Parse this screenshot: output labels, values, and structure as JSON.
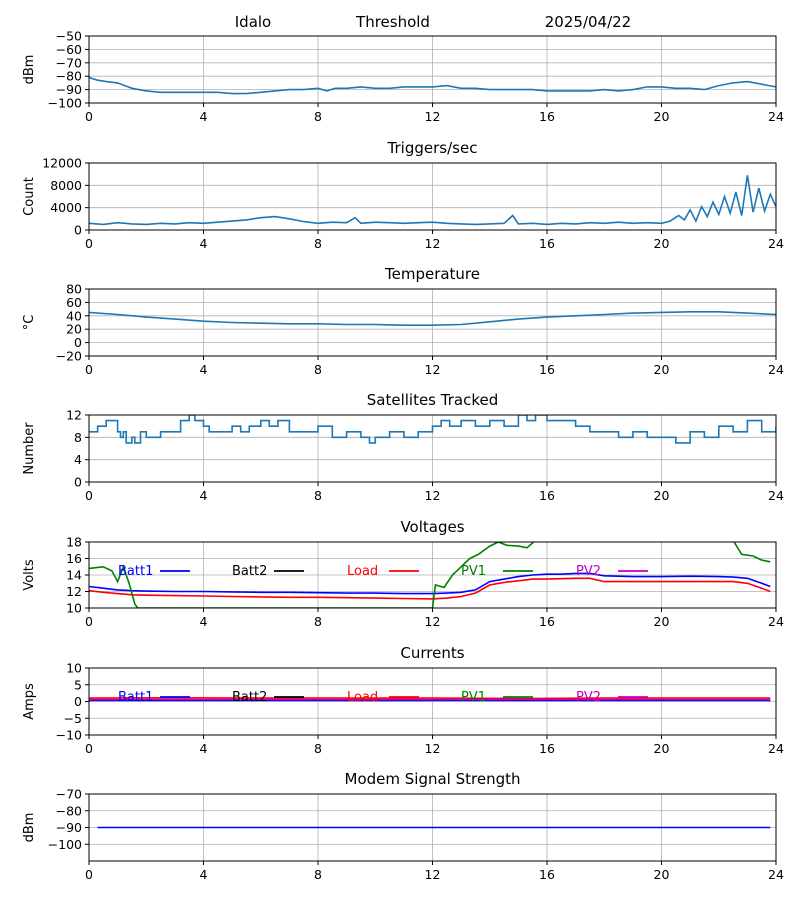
{
  "header": {
    "site": "Idalo",
    "label": "Threshold",
    "date": "2025/04/22"
  },
  "chart_data": [
    {
      "id": "threshold",
      "type": "line",
      "title": "",
      "ylabel": "dBm",
      "xlim": [
        0,
        24
      ],
      "ylim": [
        -100,
        -50
      ],
      "yticks": [
        -50,
        -60,
        -70,
        -80,
        -90,
        -100
      ],
      "xticks": [
        0,
        4,
        8,
        12,
        16,
        20,
        24
      ],
      "grid": true,
      "series": [
        {
          "color": "#1f77b4",
          "x": [
            0,
            0.3,
            0.6,
            1,
            1.5,
            2,
            2.5,
            3,
            3.5,
            4,
            4.5,
            5,
            5.5,
            6,
            6.5,
            7,
            7.5,
            8,
            8.3,
            8.6,
            9,
            9.5,
            10,
            10.5,
            11,
            11.5,
            12,
            12.5,
            13,
            13.5,
            14,
            14.5,
            15,
            15.5,
            16,
            16.5,
            17,
            17.5,
            18,
            18.5,
            19,
            19.5,
            20,
            20.5,
            21,
            21.5,
            22,
            22.5,
            23,
            23.5,
            24
          ],
          "y": [
            -81,
            -83,
            -84,
            -85,
            -89,
            -91,
            -92,
            -92,
            -92,
            -92,
            -92,
            -93,
            -93,
            -92,
            -91,
            -90,
            -90,
            -89,
            -91,
            -89,
            -89,
            -88,
            -89,
            -89,
            -88,
            -88,
            -88,
            -87,
            -89,
            -89,
            -90,
            -90,
            -90,
            -90,
            -91,
            -91,
            -91,
            -91,
            -90,
            -91,
            -90,
            -88,
            -88,
            -89,
            -89,
            -90,
            -87,
            -85,
            -84,
            -86,
            -88
          ]
        }
      ]
    },
    {
      "id": "triggers",
      "type": "line",
      "title": "Triggers/sec",
      "ylabel": "Count",
      "xlim": [
        0,
        24
      ],
      "ylim": [
        0,
        12000
      ],
      "yticks": [
        0,
        4000,
        8000,
        12000
      ],
      "xticks": [
        0,
        4,
        8,
        12,
        16,
        20,
        24
      ],
      "grid": true,
      "series": [
        {
          "color": "#1f77b4",
          "x": [
            0,
            0.5,
            1,
            1.5,
            2,
            2.5,
            3,
            3.5,
            4,
            4.5,
            5,
            5.5,
            6,
            6.5,
            7,
            7.5,
            8,
            8.5,
            9,
            9.3,
            9.5,
            10,
            10.5,
            11,
            11.5,
            12,
            12.5,
            13,
            13.5,
            14,
            14.5,
            14.8,
            15,
            15.5,
            16,
            16.5,
            17,
            17.5,
            18,
            18.5,
            19,
            19.5,
            20,
            20.3,
            20.6,
            20.8,
            21,
            21.2,
            21.4,
            21.6,
            21.8,
            22,
            22.2,
            22.4,
            22.6,
            22.8,
            23,
            23.2,
            23.4,
            23.6,
            23.8,
            24
          ],
          "y": [
            1200,
            1000,
            1300,
            1100,
            1000,
            1200,
            1100,
            1300,
            1200,
            1400,
            1600,
            1800,
            2200,
            2400,
            2000,
            1500,
            1200,
            1400,
            1300,
            2200,
            1200,
            1400,
            1300,
            1200,
            1300,
            1400,
            1200,
            1100,
            1000,
            1100,
            1200,
            2600,
            1100,
            1200,
            1000,
            1200,
            1100,
            1300,
            1200,
            1400,
            1200,
            1300,
            1200,
            1600,
            2600,
            1800,
            3600,
            1600,
            4200,
            2400,
            5000,
            2800,
            6000,
            3000,
            6800,
            2600,
            9800,
            3200,
            7500,
            3400,
            6400,
            4200
          ]
        }
      ]
    },
    {
      "id": "temperature",
      "type": "line",
      "title": "Temperature",
      "ylabel": "°C",
      "xlim": [
        0,
        24
      ],
      "ylim": [
        -20,
        80
      ],
      "yticks": [
        80,
        60,
        40,
        20,
        0,
        -20
      ],
      "xticks": [
        0,
        4,
        8,
        12,
        16,
        20,
        24
      ],
      "grid": true,
      "series": [
        {
          "color": "#1f77b4",
          "x": [
            0,
            1,
            2,
            3,
            4,
            5,
            6,
            7,
            8,
            9,
            10,
            11,
            12,
            13,
            14,
            15,
            16,
            17,
            18,
            19,
            20,
            21,
            22,
            23,
            24
          ],
          "y": [
            45,
            42,
            38,
            35,
            32,
            30,
            29,
            28,
            28,
            27,
            27,
            26,
            26,
            27,
            31,
            35,
            38,
            40,
            42,
            44,
            45,
            46,
            46,
            44,
            42
          ]
        }
      ]
    },
    {
      "id": "satellites",
      "type": "line",
      "title": "Satellites Tracked",
      "ylabel": "Number",
      "xlim": [
        0,
        24
      ],
      "ylim": [
        0,
        12
      ],
      "yticks": [
        0,
        4,
        8,
        12
      ],
      "xticks": [
        0,
        4,
        8,
        12,
        16,
        20,
        24
      ],
      "grid": true,
      "series": [
        {
          "color": "#1f77b4",
          "step": true,
          "x": [
            0,
            0.3,
            0.6,
            1,
            1.1,
            1.2,
            1.3,
            1.5,
            1.6,
            1.8,
            2,
            2.5,
            3,
            3.2,
            3.5,
            3.7,
            4,
            4.2,
            4.5,
            5,
            5.3,
            5.6,
            6,
            6.3,
            6.6,
            7,
            7.5,
            8,
            8.5,
            9,
            9.5,
            9.8,
            10,
            10.5,
            11,
            11.5,
            12,
            12.3,
            12.6,
            13,
            13.5,
            14,
            14.5,
            15,
            15.3,
            15.6,
            16,
            16.5,
            17,
            17.5,
            18,
            18.5,
            19,
            19.5,
            20,
            20.3,
            20.5,
            21,
            21.5,
            22,
            22.5,
            23,
            23.5,
            24
          ],
          "y": [
            9,
            10,
            11,
            9,
            8,
            9,
            7,
            8,
            7,
            9,
            8,
            9,
            9,
            11,
            12,
            11,
            10,
            9,
            9,
            10,
            9,
            10,
            11,
            10,
            11,
            9,
            9,
            10,
            8,
            9,
            8,
            7,
            8,
            9,
            8,
            9,
            10,
            11,
            10,
            11,
            10,
            11,
            10,
            12,
            11,
            12,
            11,
            11,
            10,
            9,
            9,
            8,
            9,
            8,
            8,
            8,
            7,
            9,
            8,
            10,
            9,
            11,
            9,
            10
          ]
        }
      ]
    },
    {
      "id": "voltages",
      "type": "line",
      "title": "Voltages",
      "ylabel": "Volts",
      "xlim": [
        0,
        24
      ],
      "ylim": [
        10,
        18
      ],
      "yticks": [
        10,
        12,
        14,
        16,
        18
      ],
      "xticks": [
        0,
        4,
        8,
        12,
        16,
        20,
        24
      ],
      "grid": true,
      "legend_position": "top",
      "series": [
        {
          "name": "Batt1",
          "color": "#0000ff",
          "x": [
            0,
            0.5,
            1,
            1.5,
            2,
            3,
            4,
            5,
            6,
            7,
            8,
            9,
            10,
            11,
            12,
            12.5,
            13,
            13.5,
            14,
            14.5,
            15,
            15.5,
            16,
            16.5,
            17,
            17.5,
            18,
            19,
            20,
            21,
            22,
            22.5,
            23,
            23.5,
            23.8
          ],
          "y": [
            12.6,
            12.4,
            12.2,
            12.1,
            12.05,
            12.0,
            12.0,
            11.95,
            11.9,
            11.9,
            11.85,
            11.8,
            11.8,
            11.75,
            11.75,
            11.8,
            11.9,
            12.2,
            13.2,
            13.5,
            13.8,
            14.0,
            14.1,
            14.1,
            14.2,
            14.2,
            13.9,
            13.8,
            13.8,
            13.85,
            13.8,
            13.75,
            13.6,
            13.0,
            12.6
          ]
        },
        {
          "name": "Batt2",
          "color": "#000000",
          "x": [],
          "y": []
        },
        {
          "name": "Load",
          "color": "#ff0000",
          "x": [
            0,
            0.5,
            1,
            1.5,
            2,
            3,
            4,
            5,
            6,
            7,
            8,
            9,
            10,
            11,
            12,
            12.5,
            13,
            13.5,
            14,
            14.5,
            15,
            15.5,
            16,
            16.5,
            17,
            17.5,
            18,
            19,
            20,
            21,
            22,
            22.5,
            23,
            23.5,
            23.8
          ],
          "y": [
            12.1,
            11.9,
            11.75,
            11.6,
            11.55,
            11.5,
            11.45,
            11.4,
            11.35,
            11.3,
            11.3,
            11.25,
            11.2,
            11.15,
            11.1,
            11.2,
            11.4,
            11.8,
            12.8,
            13.1,
            13.3,
            13.5,
            13.5,
            13.55,
            13.6,
            13.6,
            13.2,
            13.2,
            13.2,
            13.2,
            13.2,
            13.2,
            13.0,
            12.4,
            12.0
          ]
        },
        {
          "name": "PV1",
          "color": "#008000",
          "x": [
            0,
            0.5,
            0.8,
            1,
            1.2,
            1.4,
            1.6,
            1.7,
            12,
            12.1,
            12.4,
            12.7,
            13,
            13.3,
            13.6,
            14,
            14.3,
            14.6,
            15,
            15.3,
            15.6,
            22.5,
            22.8,
            23.2,
            23.5,
            23.8
          ],
          "y": [
            14.8,
            15.0,
            14.5,
            13.2,
            15.0,
            13.0,
            10.5,
            10.0,
            10.0,
            12.8,
            12.5,
            14.0,
            15.0,
            16.0,
            16.5,
            17.5,
            18.0,
            17.6,
            17.5,
            17.3,
            18.2,
            18.2,
            16.5,
            16.3,
            15.8,
            15.6
          ]
        },
        {
          "name": "PV2",
          "color": "#bf00bf",
          "x": [],
          "y": []
        }
      ]
    },
    {
      "id": "currents",
      "type": "line",
      "title": "Currents",
      "ylabel": "Amps",
      "xlim": [
        0,
        24
      ],
      "ylim": [
        -10,
        10
      ],
      "yticks": [
        -10,
        -5,
        0,
        5,
        10
      ],
      "xticks": [
        0,
        4,
        8,
        12,
        16,
        20,
        24
      ],
      "grid": true,
      "legend_position": "top",
      "series": [
        {
          "name": "Batt1",
          "color": "#0000ff",
          "x": [
            0,
            4,
            8,
            12,
            16,
            20,
            23.8
          ],
          "y": [
            0.3,
            0.3,
            0.3,
            0.3,
            0.3,
            0.3,
            0.3
          ]
        },
        {
          "name": "Batt2",
          "color": "#000000",
          "x": [],
          "y": []
        },
        {
          "name": "Load",
          "color": "#ff0000",
          "x": [
            0,
            3,
            6,
            9,
            12,
            15,
            18,
            21,
            23.8
          ],
          "y": [
            1.0,
            1.1,
            1.0,
            1.0,
            1.0,
            0.9,
            1.0,
            1.0,
            1.0
          ]
        },
        {
          "name": "PV1",
          "color": "#008000",
          "x": [],
          "y": []
        },
        {
          "name": "PV2",
          "color": "#bf00bf",
          "x": [
            0,
            4,
            8,
            12,
            16,
            20,
            23.8
          ],
          "y": [
            0.6,
            0.6,
            0.6,
            0.6,
            0.6,
            0.6,
            0.6
          ]
        }
      ]
    },
    {
      "id": "modem",
      "type": "line",
      "title": "Modem Signal Strength",
      "ylabel": "dBm",
      "xlim": [
        0,
        24
      ],
      "ylim": [
        -110,
        -70
      ],
      "yticks": [
        -70,
        -80,
        -90,
        -100
      ],
      "xticks": [
        0,
        4,
        8,
        12,
        16,
        20,
        24
      ],
      "grid": true,
      "series": [
        {
          "color": "#0000ff",
          "x": [
            0.3,
            23.8
          ],
          "y": [
            -90,
            -90
          ]
        }
      ]
    }
  ]
}
